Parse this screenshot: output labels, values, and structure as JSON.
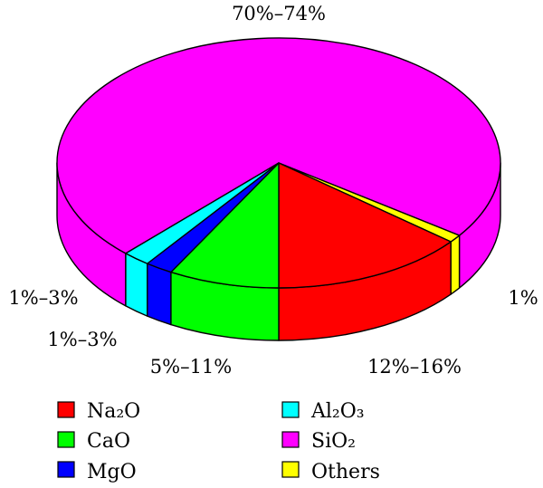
{
  "chart_data": {
    "type": "pie",
    "style": "3d",
    "slices": [
      {
        "label": "SiO₂",
        "value_label": "70%–74%",
        "value": 72,
        "color": "#ff00ff"
      },
      {
        "label": "Others",
        "value_label": "1%",
        "value": 1,
        "color": "#ffff00"
      },
      {
        "label": "Na₂O",
        "value_label": "12%–16%",
        "value": 14,
        "color": "#ff0000"
      },
      {
        "label": "CaO",
        "value_label": "5%–11%",
        "value": 8,
        "color": "#00ff00"
      },
      {
        "label": "MgO",
        "value_label": "1%–3%",
        "value": 2,
        "color": "#0000ff"
      },
      {
        "label": "Al₂O₃",
        "value_label": "1%–3%",
        "value": 2,
        "color": "#00ffff"
      }
    ],
    "legend": {
      "placement": "bottom",
      "columns": [
        [
          "Na₂O",
          "CaO",
          "MgO"
        ],
        [
          "Al₂O₃",
          "SiO₂",
          "Others"
        ]
      ]
    }
  }
}
